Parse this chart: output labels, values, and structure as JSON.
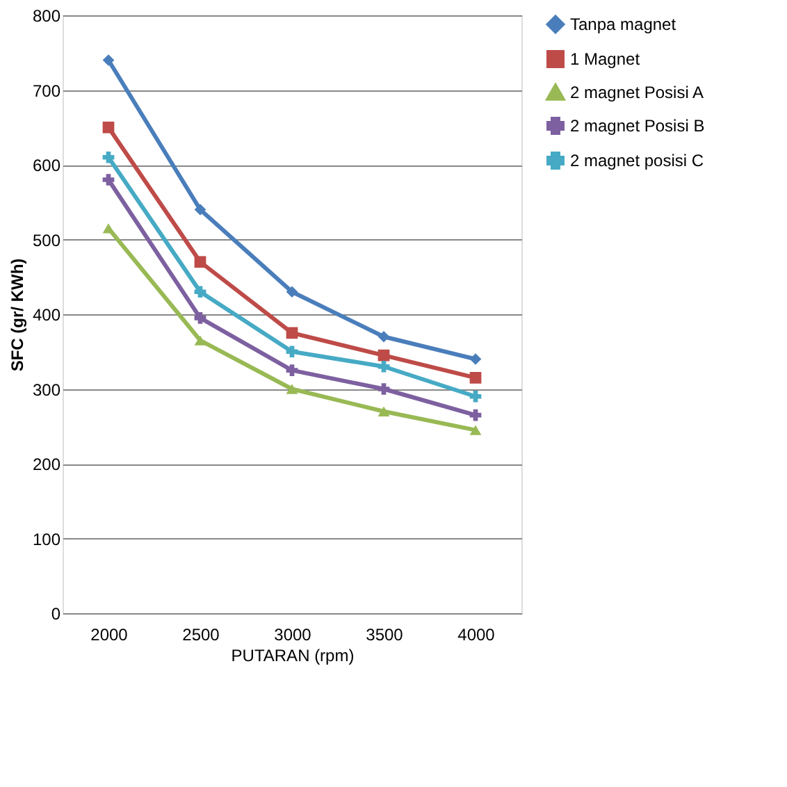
{
  "chart_data": {
    "type": "line",
    "xlabel": "PUTARAN (rpm)",
    "ylabel": "SFC (gr/ KWh)",
    "categories": [
      "2000",
      "2500",
      "3000",
      "3500",
      "4000"
    ],
    "ylim": [
      0,
      800
    ],
    "yticks": [
      0,
      100,
      200,
      300,
      400,
      500,
      600,
      700,
      800
    ],
    "grid": "y",
    "legend": "right",
    "series": [
      {
        "name": "Tanpa magnet",
        "color": "#4a7ebb",
        "marker": "diamond",
        "values": [
          740,
          540,
          430,
          370,
          340
        ]
      },
      {
        "name": "1 Magnet",
        "color": "#be4b48",
        "marker": "square",
        "values": [
          650,
          470,
          375,
          345,
          315
        ]
      },
      {
        "name": "2 magnet Posisi A",
        "color": "#98b954",
        "marker": "triangle",
        "values": [
          515,
          365,
          300,
          270,
          245
        ]
      },
      {
        "name": "2 magnet Posisi B",
        "color": "#7d60a0",
        "marker": "cross",
        "values": [
          580,
          395,
          325,
          300,
          265
        ]
      },
      {
        "name": "2 magnet posisi C",
        "color": "#46aac5",
        "marker": "cross",
        "values": [
          610,
          430,
          350,
          330,
          290
        ]
      }
    ]
  }
}
